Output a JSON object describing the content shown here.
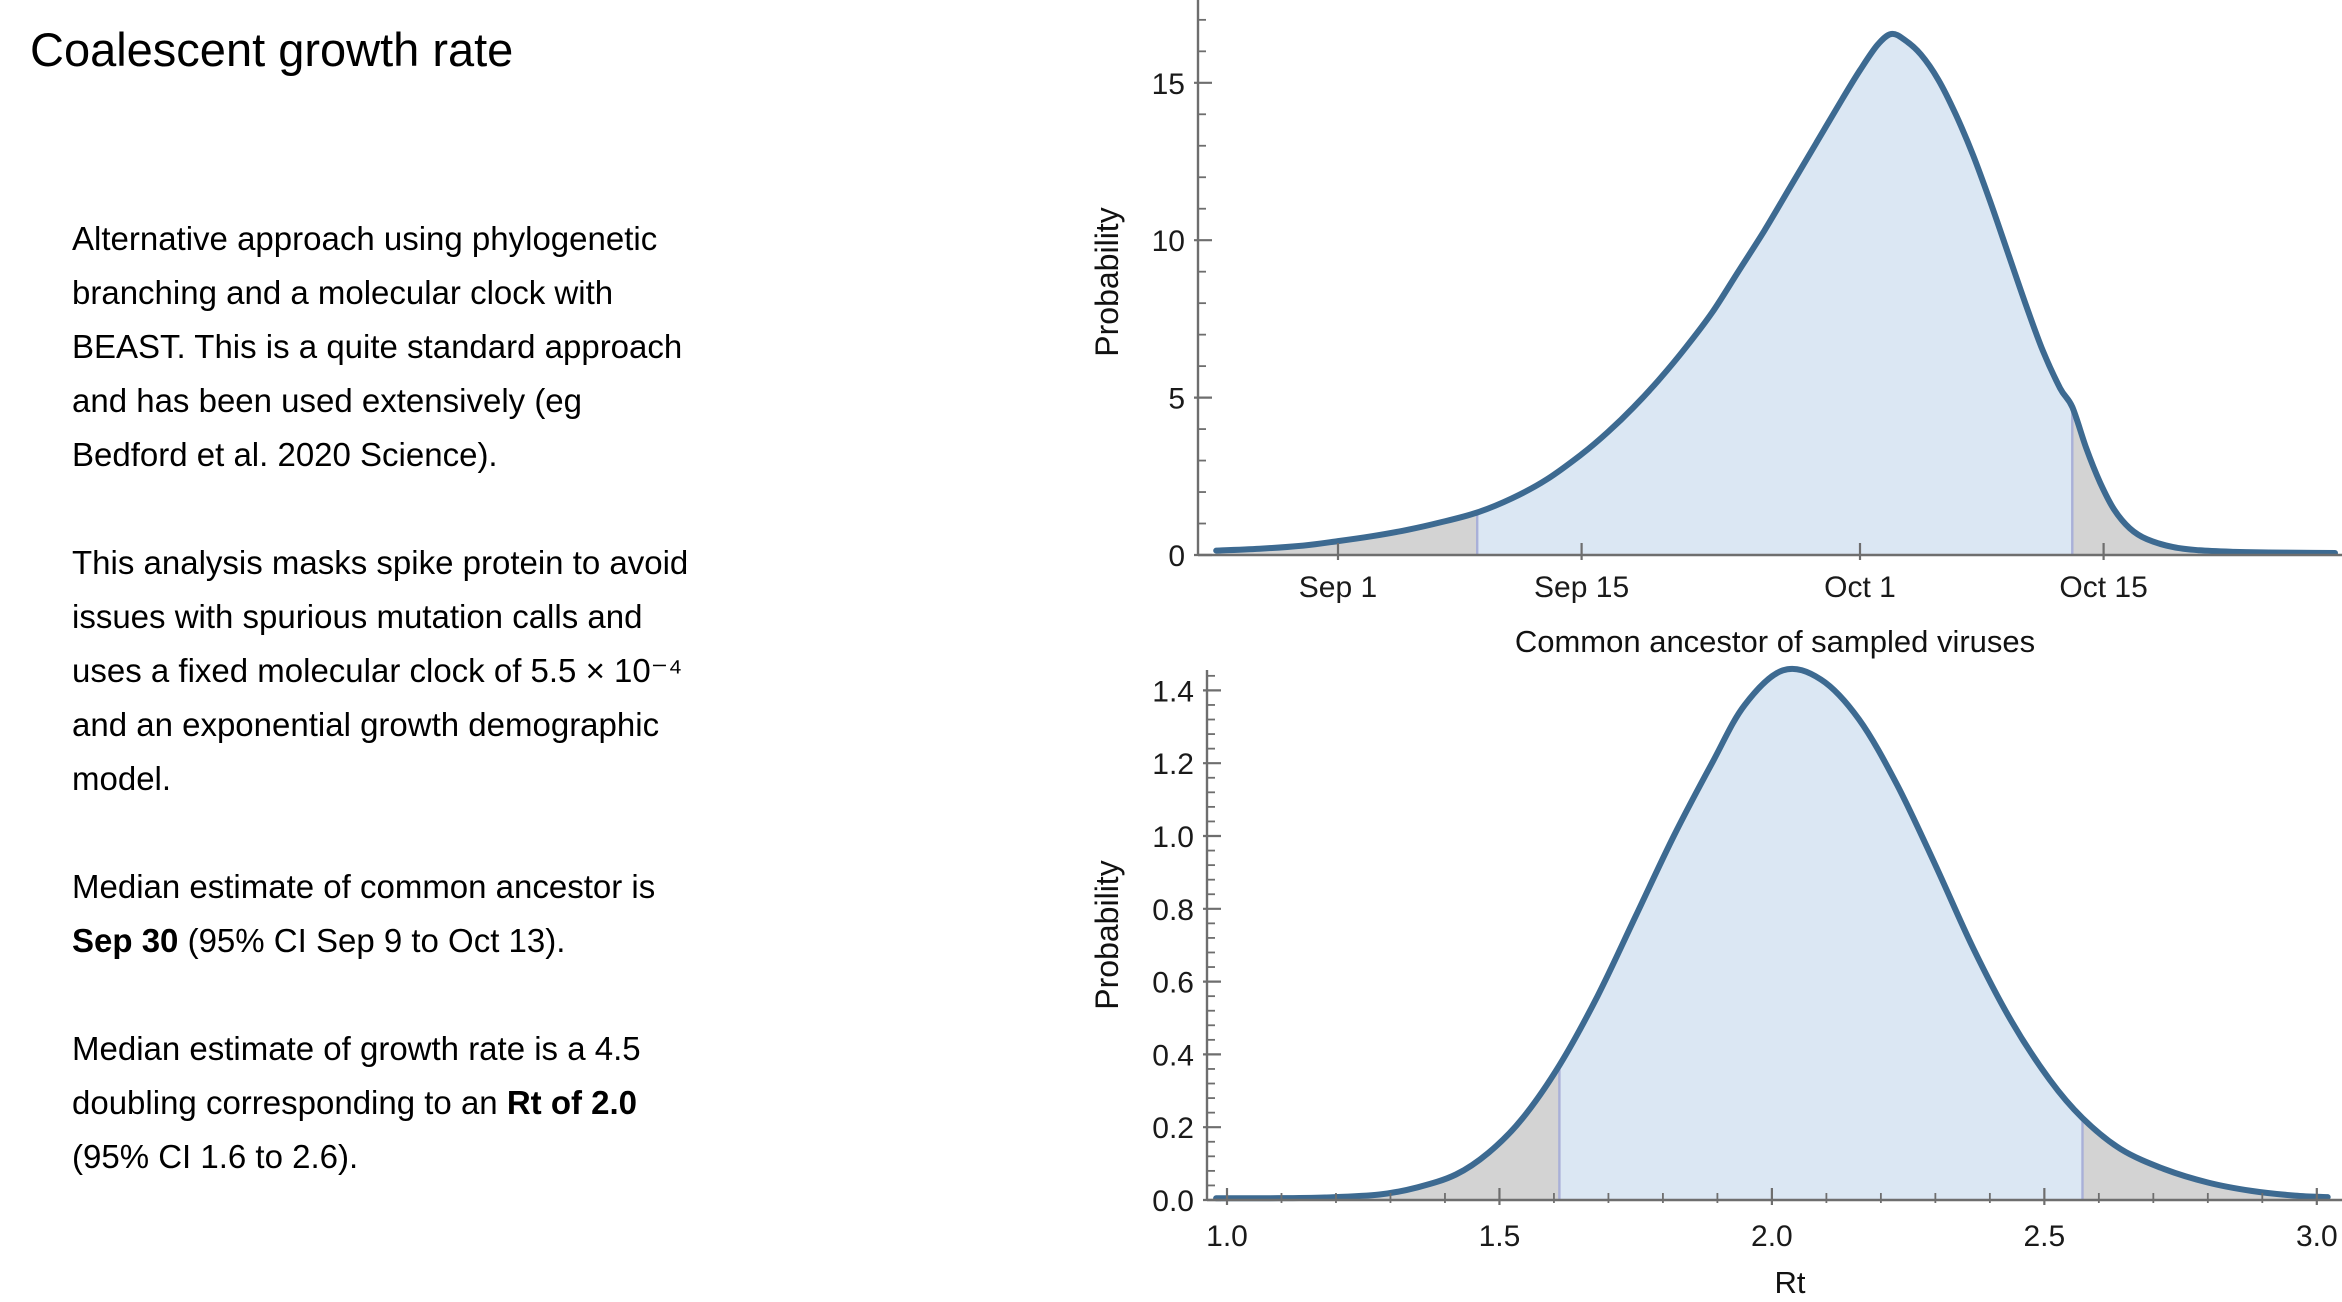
{
  "slide": {
    "title": "Coalescent growth rate",
    "background": "#ffffff"
  },
  "body": {
    "paragraphs": [
      {
        "name": "paragraph-approach",
        "lines": [
          [
            {
              "t": "Alternative approach using phylogenetic"
            }
          ],
          [
            {
              "t": "branching and a molecular clock with"
            }
          ],
          [
            {
              "t": "BEAST. This is a quite standard approach"
            }
          ],
          [
            {
              "t": "and has been used extensively (eg"
            }
          ],
          [
            {
              "t": "Bedford et al. 2020 Science)."
            }
          ]
        ]
      },
      {
        "name": "paragraph-analysis",
        "lines": [
          [
            {
              "t": "This analysis masks spike protein to avoid"
            }
          ],
          [
            {
              "t": "issues with spurious mutation calls and"
            }
          ],
          [
            {
              "t": "uses a fixed molecular clock of 5.5 × 10⁻⁴"
            }
          ],
          [
            {
              "t": "and an exponential growth demographic"
            }
          ],
          [
            {
              "t": "model."
            }
          ]
        ]
      },
      {
        "name": "paragraph-ancestor-estimate",
        "lines": [
          [
            {
              "t": "Median estimate of common ancestor is"
            }
          ],
          [
            {
              "t": "Sep 30",
              "b": true
            },
            {
              "t": " (95% CI Sep 9 to Oct 13)."
            }
          ]
        ]
      },
      {
        "name": "paragraph-growth-estimate",
        "lines": [
          [
            {
              "t": "Median estimate of growth rate is a 4.5"
            }
          ],
          [
            {
              "t": "doubling corresponding to an "
            },
            {
              "t": "Rt of 2.0",
              "b": true
            }
          ],
          [
            {
              "t": "(95% CI 1.6 to 2.6)."
            }
          ]
        ]
      }
    ]
  },
  "colors": {
    "curve": "#3d6a91",
    "fill_blue": "#dbe7f3",
    "fill_gray": "#d3d3d3",
    "ci_line": "#a9b0d8",
    "axis": "#6e6e6e",
    "tick_text": "#1a1a1a",
    "label_text": "#111111"
  },
  "chart_data": [
    {
      "type": "area",
      "title": "",
      "xlabel": "Common ancestor of sampled viruses",
      "ylabel": "Probability",
      "x_unit": "days (Sep 1 = 1)",
      "xlim": [
        -7,
        58.7
      ],
      "ylim": [
        0,
        17.6
      ],
      "grid": false,
      "legend": "none",
      "x_ticks": [
        {
          "v": 1,
          "label": "Sep 1"
        },
        {
          "v": 15,
          "label": "Sep 15"
        },
        {
          "v": 31,
          "label": "Oct 1"
        },
        {
          "v": 45,
          "label": "Oct 15"
        }
      ],
      "y_ticks": [
        {
          "v": 0,
          "label": "0"
        },
        {
          "v": 5,
          "label": "5"
        },
        {
          "v": 10,
          "label": "10"
        },
        {
          "v": 15,
          "label": "15"
        }
      ],
      "y_minor_step": 1,
      "x_minor_step": null,
      "ci": {
        "lo": 9,
        "hi": 43.2,
        "lo_label": "Sep 9",
        "hi_label": "Oct 13",
        "level": "95%"
      },
      "median": {
        "label": "Sep 30"
      },
      "peak": {
        "x": 32.8,
        "y": 16.55
      },
      "curve": [
        [
          -6,
          0.14
        ],
        [
          -3.5,
          0.2
        ],
        [
          -1,
          0.3
        ],
        [
          1,
          0.44
        ],
        [
          3,
          0.6
        ],
        [
          5,
          0.8
        ],
        [
          7,
          1.05
        ],
        [
          9,
          1.35
        ],
        [
          11,
          1.8
        ],
        [
          13,
          2.4
        ],
        [
          15,
          3.2
        ],
        [
          16.5,
          3.9
        ],
        [
          18,
          4.7
        ],
        [
          19.5,
          5.6
        ],
        [
          21,
          6.6
        ],
        [
          22.5,
          7.7
        ],
        [
          24,
          9.0
        ],
        [
          25.5,
          10.3
        ],
        [
          27,
          11.7
        ],
        [
          28.5,
          13.1
        ],
        [
          30,
          14.5
        ],
        [
          31,
          15.4
        ],
        [
          32,
          16.2
        ],
        [
          32.8,
          16.55
        ],
        [
          33.6,
          16.35
        ],
        [
          34.5,
          15.9
        ],
        [
          35.5,
          15.1
        ],
        [
          36.5,
          14.0
        ],
        [
          37.5,
          12.7
        ],
        [
          38.5,
          11.2
        ],
        [
          39.5,
          9.6
        ],
        [
          40.5,
          8.0
        ],
        [
          41.5,
          6.5
        ],
        [
          42.5,
          5.3
        ],
        [
          43.2,
          4.7
        ],
        [
          44,
          3.4
        ],
        [
          44.8,
          2.3
        ],
        [
          45.6,
          1.45
        ],
        [
          46.5,
          0.85
        ],
        [
          47.5,
          0.5
        ],
        [
          49,
          0.25
        ],
        [
          50.5,
          0.15
        ],
        [
          52.5,
          0.1
        ],
        [
          54.5,
          0.08
        ],
        [
          56.3,
          0.07
        ],
        [
          58.3,
          0.065
        ]
      ]
    },
    {
      "type": "area",
      "title": "",
      "xlabel": "Rt",
      "ylabel": "Probability",
      "x_unit": "reproduction number",
      "xlim": [
        0.96,
        3.05
      ],
      "ylim": [
        0,
        1.47
      ],
      "grid": false,
      "legend": "none",
      "x_ticks": [
        {
          "v": 1,
          "label": "1.0"
        },
        {
          "v": 1.5,
          "label": "1.5"
        },
        {
          "v": 2,
          "label": "2.0"
        },
        {
          "v": 2.5,
          "label": "2.5"
        },
        {
          "v": 3,
          "label": "3.0"
        }
      ],
      "y_ticks": [
        {
          "v": 0,
          "label": "0.0"
        },
        {
          "v": 0.2,
          "label": "0.2"
        },
        {
          "v": 0.4,
          "label": "0.4"
        },
        {
          "v": 0.6,
          "label": "0.6"
        },
        {
          "v": 0.8,
          "label": "0.8"
        },
        {
          "v": 1.0,
          "label": "1.0"
        },
        {
          "v": 1.2,
          "label": "1.2"
        },
        {
          "v": 1.4,
          "label": "1.4"
        }
      ],
      "y_minor_step": 0.04,
      "x_minor_step": 0.1,
      "ci": {
        "lo": 1.61,
        "hi": 2.57,
        "lo_label": "1.6",
        "hi_label": "2.6",
        "level": "95%"
      },
      "median": {
        "label": "2.0"
      },
      "peak": {
        "x": 2.02,
        "y": 1.455
      },
      "curve": [
        [
          0.98,
          0.005
        ],
        [
          1.08,
          0.005
        ],
        [
          1.18,
          0.007
        ],
        [
          1.28,
          0.015
        ],
        [
          1.35,
          0.035
        ],
        [
          1.42,
          0.07
        ],
        [
          1.48,
          0.13
        ],
        [
          1.54,
          0.22
        ],
        [
          1.61,
          0.37
        ],
        [
          1.68,
          0.56
        ],
        [
          1.75,
          0.78
        ],
        [
          1.82,
          1.0
        ],
        [
          1.89,
          1.2
        ],
        [
          1.95,
          1.36
        ],
        [
          2.02,
          1.455
        ],
        [
          2.09,
          1.43
        ],
        [
          2.16,
          1.32
        ],
        [
          2.23,
          1.14
        ],
        [
          2.3,
          0.92
        ],
        [
          2.37,
          0.69
        ],
        [
          2.44,
          0.49
        ],
        [
          2.51,
          0.33
        ],
        [
          2.57,
          0.225
        ],
        [
          2.64,
          0.14
        ],
        [
          2.72,
          0.085
        ],
        [
          2.8,
          0.048
        ],
        [
          2.88,
          0.025
        ],
        [
          2.96,
          0.012
        ],
        [
          3.02,
          0.008
        ]
      ]
    }
  ]
}
